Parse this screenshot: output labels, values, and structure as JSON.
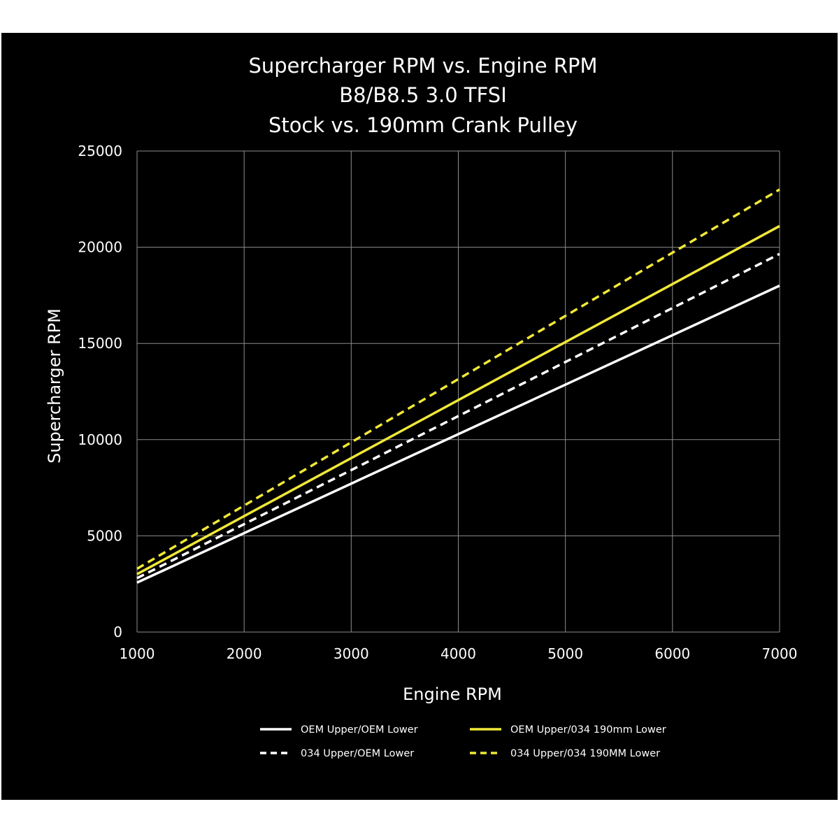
{
  "chart_data": {
    "type": "line",
    "title": [
      "Supercharger RPM vs. Engine RPM",
      "B8/B8.5 3.0 TFSI",
      "Stock vs. 190mm Crank Pulley"
    ],
    "xlabel": "Engine RPM",
    "ylabel": "Supercharger RPM",
    "xlim": [
      1000,
      7000
    ],
    "ylim": [
      0,
      25000
    ],
    "xticks": [
      1000,
      2000,
      3000,
      4000,
      5000,
      6000,
      7000
    ],
    "yticks": [
      0,
      5000,
      10000,
      15000,
      20000,
      25000
    ],
    "grid": true,
    "legend_position": "bottom",
    "series": [
      {
        "name": "OEM Upper/OEM Lower",
        "color": "#ffffff",
        "dash": false,
        "x": [
          1000,
          7000
        ],
        "y": [
          2570,
          18000
        ]
      },
      {
        "name": "OEM Upper/034 190mm Lower",
        "color": "#f0e838",
        "dash": false,
        "x": [
          1000,
          7000
        ],
        "y": [
          3010,
          21100
        ]
      },
      {
        "name": "034 Upper/OEM Lower",
        "color": "#ffffff",
        "dash": true,
        "x": [
          1000,
          7000
        ],
        "y": [
          2800,
          19650
        ]
      },
      {
        "name": "034 Upper/034 190MM Lower",
        "color": "#f0e838",
        "dash": true,
        "x": [
          1000,
          7000
        ],
        "y": [
          3290,
          23000
        ]
      }
    ]
  }
}
